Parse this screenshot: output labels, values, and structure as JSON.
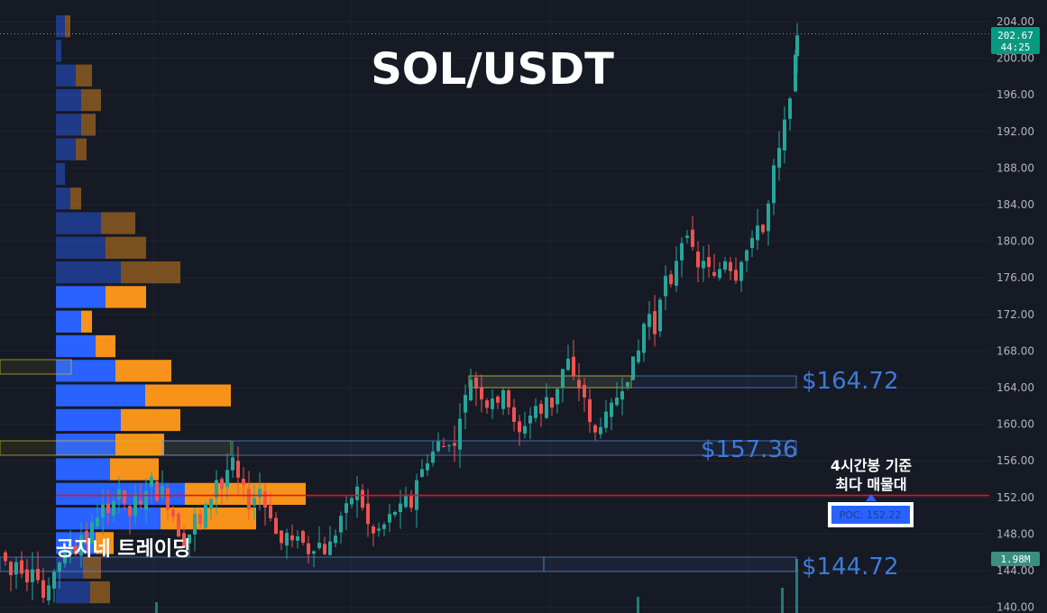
{
  "title": "SOL/USDT",
  "brand": "공지네 트레이딩",
  "note": {
    "line1": "4시간봉 기준",
    "line2": "최다 매물대"
  },
  "poc_label": "POC: 152.22",
  "price_tag": {
    "price": "202.67",
    "countdown": "44:25"
  },
  "volume_tag": "1.98M",
  "levels": [
    {
      "price": 164.72,
      "label": "$164.72"
    },
    {
      "price": 157.36,
      "label": "$157.36"
    },
    {
      "price": 144.72,
      "label": "$144.72"
    }
  ],
  "colors": {
    "background": "#161a25",
    "up": "#26a69a",
    "down": "#ef5350",
    "poc_line": "#e8111b",
    "profile_buy": "#2962ff",
    "profile_sell": "#f7931a",
    "level_line": "#3d7bd8",
    "tag_green": "#089981"
  },
  "chart_data": {
    "type": "candlestick",
    "title": "SOL/USDT",
    "timeframe": "4h",
    "ylim": [
      140,
      204
    ],
    "y_ticks": [
      "204.00",
      "200.00",
      "196.00",
      "192.00",
      "188.00",
      "184.00",
      "180.00",
      "176.00",
      "172.00",
      "168.00",
      "164.00",
      "160.00",
      "156.00",
      "152.00",
      "148.00",
      "144.00",
      "140.00"
    ],
    "last_price": 202.67,
    "poc": 152.22,
    "support_resistance": [
      164.72,
      157.36,
      144.72
    ],
    "close_path": [
      [
        0,
        146
      ],
      [
        6,
        145
      ],
      [
        12,
        143.5
      ],
      [
        18,
        145
      ],
      [
        24,
        144
      ],
      [
        30,
        143
      ],
      [
        36,
        144.5
      ],
      [
        42,
        143
      ],
      [
        48,
        141
      ],
      [
        54,
        142
      ],
      [
        60,
        144
      ],
      [
        66,
        145
      ],
      [
        72,
        146
      ],
      [
        78,
        147
      ],
      [
        84,
        146
      ],
      [
        90,
        148
      ],
      [
        96,
        147
      ],
      [
        102,
        149
      ],
      [
        108,
        150
      ],
      [
        114,
        151
      ],
      [
        120,
        150
      ],
      [
        126,
        152
      ],
      [
        132,
        153
      ],
      [
        138,
        151
      ],
      [
        144,
        150
      ],
      [
        150,
        152
      ],
      [
        156,
        151
      ],
      [
        162,
        153
      ],
      [
        168,
        154
      ],
      [
        174,
        152
      ],
      [
        180,
        153
      ],
      [
        186,
        151
      ],
      [
        192,
        150
      ],
      [
        198,
        148
      ],
      [
        204,
        147
      ],
      [
        210,
        148
      ],
      [
        216,
        150
      ],
      [
        222,
        149
      ],
      [
        228,
        151
      ],
      [
        234,
        152
      ],
      [
        240,
        154
      ],
      [
        246,
        153
      ],
      [
        252,
        155
      ],
      [
        258,
        156
      ],
      [
        264,
        154
      ],
      [
        270,
        153
      ],
      [
        276,
        151
      ],
      [
        282,
        152
      ],
      [
        288,
        153
      ],
      [
        294,
        151
      ],
      [
        300,
        150
      ],
      [
        306,
        148
      ],
      [
        312,
        147
      ],
      [
        318,
        148
      ],
      [
        324,
        147
      ],
      [
        330,
        148
      ],
      [
        336,
        147
      ],
      [
        342,
        146
      ],
      [
        348,
        146.5
      ],
      [
        354,
        147
      ],
      [
        360,
        146
      ],
      [
        366,
        147
      ],
      [
        372,
        148
      ],
      [
        378,
        150
      ],
      [
        384,
        151
      ],
      [
        390,
        152
      ],
      [
        396,
        153
      ],
      [
        402,
        151
      ],
      [
        408,
        149
      ],
      [
        414,
        148
      ],
      [
        420,
        148.5
      ],
      [
        426,
        149
      ],
      [
        432,
        150
      ],
      [
        438,
        150.5
      ],
      [
        444,
        151
      ],
      [
        450,
        152
      ],
      [
        456,
        151
      ],
      [
        462,
        154
      ],
      [
        468,
        155
      ],
      [
        474,
        156
      ],
      [
        480,
        157
      ],
      [
        486,
        158
      ],
      [
        492,
        157.5
      ],
      [
        498,
        158
      ],
      [
        504,
        157.5
      ],
      [
        510,
        161
      ],
      [
        516,
        163
      ],
      [
        522,
        165
      ],
      [
        528,
        164
      ],
      [
        534,
        163
      ],
      [
        540,
        162
      ],
      [
        546,
        163
      ],
      [
        552,
        162
      ],
      [
        558,
        164
      ],
      [
        564,
        162
      ],
      [
        570,
        160
      ],
      [
        576,
        159
      ],
      [
        582,
        160
      ],
      [
        588,
        161
      ],
      [
        594,
        162
      ],
      [
        600,
        161
      ],
      [
        606,
        163
      ],
      [
        612,
        162
      ],
      [
        618,
        164
      ],
      [
        624,
        166
      ],
      [
        630,
        167
      ],
      [
        636,
        165
      ],
      [
        642,
        164
      ],
      [
        648,
        163
      ],
      [
        654,
        160
      ],
      [
        660,
        159
      ],
      [
        666,
        160
      ],
      [
        672,
        161
      ],
      [
        678,
        162
      ],
      [
        684,
        163
      ],
      [
        690,
        164
      ],
      [
        696,
        165
      ],
      [
        702,
        167
      ],
      [
        708,
        168
      ],
      [
        714,
        171
      ],
      [
        720,
        172
      ],
      [
        726,
        170
      ],
      [
        732,
        174
      ],
      [
        738,
        176
      ],
      [
        744,
        175
      ],
      [
        750,
        178
      ],
      [
        756,
        180
      ],
      [
        762,
        181
      ],
      [
        768,
        179
      ],
      [
        774,
        177
      ],
      [
        780,
        178
      ],
      [
        786,
        177
      ],
      [
        792,
        176
      ],
      [
        798,
        177
      ],
      [
        804,
        178
      ],
      [
        810,
        177
      ],
      [
        816,
        176
      ],
      [
        822,
        178
      ],
      [
        828,
        179
      ],
      [
        834,
        180
      ],
      [
        840,
        182
      ],
      [
        846,
        181
      ],
      [
        852,
        184
      ],
      [
        858,
        188
      ],
      [
        864,
        190
      ],
      [
        870,
        193
      ],
      [
        876,
        196
      ],
      [
        882,
        200
      ],
      [
        884,
        202.67
      ]
    ],
    "volume_profile_levels": "horizontal histogram of buy (blue) and sell (orange) volume per price band, POC at 152.22"
  }
}
